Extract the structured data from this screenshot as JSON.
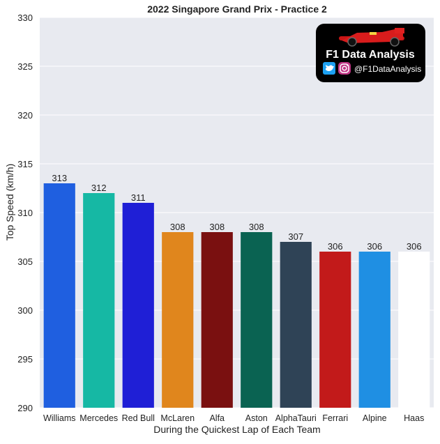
{
  "chart_data": {
    "type": "bar",
    "title": "2022 Singapore Grand Prix - Practice 2",
    "xlabel": "During the Quickest Lap of Each Team",
    "ylabel": "Top Speed (km/h)",
    "ylim": [
      290,
      330
    ],
    "yticks": [
      290,
      295,
      300,
      305,
      310,
      315,
      320,
      325,
      330
    ],
    "grid": true,
    "categories": [
      "Williams",
      "Mercedes",
      "Red Bull",
      "McLaren",
      "Alfa",
      "Aston",
      "AlphaTauri",
      "Ferrari",
      "Alpine",
      "Haas"
    ],
    "values": [
      313,
      312,
      311,
      308,
      308,
      308,
      307,
      306,
      306,
      306
    ],
    "bar_colors": [
      "#1f5fe0",
      "#16b8a4",
      "#1f1fd6",
      "#e0861d",
      "#7a1010",
      "#0a6352",
      "#2f4356",
      "#c21a1a",
      "#1f8fe3",
      "#ffffff"
    ],
    "plot_background": "#e8eaf0",
    "grid_color": "#ffffff"
  },
  "logo": {
    "title": "F1 Data Analysis",
    "handle": "@F1DataAnalysis",
    "icons": [
      "twitter-icon",
      "instagram-icon"
    ]
  }
}
